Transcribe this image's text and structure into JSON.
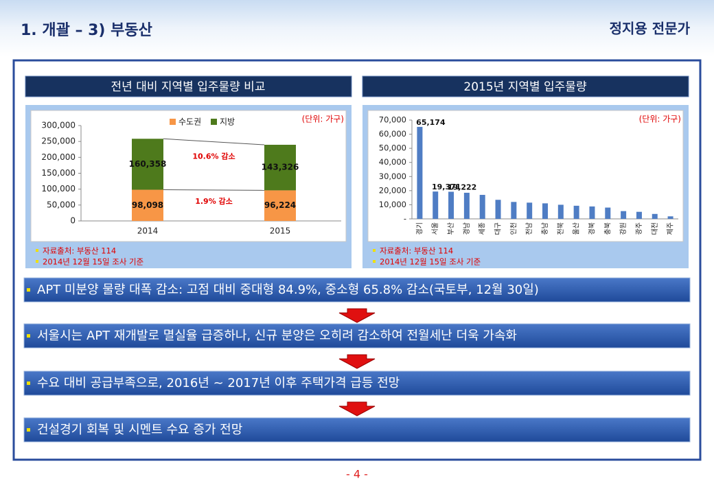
{
  "header": {
    "title": "1. 개괄 – 3) 부동산",
    "author": "정지용 전문가"
  },
  "charts": [
    {
      "type": "stacked_bar",
      "title": "전년 대비 지역별 입주물량 비교",
      "unit": "(단위: 가구)",
      "categories": [
        "2014",
        "2015"
      ],
      "series": [
        {
          "name": "수도권",
          "color": "#f79646",
          "values": [
            98098,
            96224
          ],
          "value_labels": [
            "98,098",
            "96,224"
          ]
        },
        {
          "name": "지방",
          "color": "#4e7a1c",
          "values": [
            160358,
            143326
          ],
          "value_labels": [
            "160,358",
            "143,326"
          ]
        }
      ],
      "ylim": [
        0,
        300000
      ],
      "yticks": [
        0,
        {
          "value": 50000,
          "label": "50,000"
        },
        {
          "value": 100000,
          "label": "100,000"
        },
        {
          "value": 150000,
          "label": "150,000"
        },
        {
          "value": 200000,
          "label": "200,000"
        },
        {
          "value": 250000,
          "label": "250,000"
        },
        {
          "value": 300000,
          "label": "300,000"
        }
      ],
      "annotations": [
        "10.6% 감소",
        "1.9% 감소"
      ],
      "notes": [
        "자료출처: 부동산 114",
        "2014년 12월 15일 조사 기준"
      ]
    },
    {
      "type": "bar",
      "title": "2015년 지역별 입주물량",
      "unit": "(단위: 가구)",
      "categories": [
        "경기",
        "서울",
        "부산",
        "경남",
        "세종",
        "대구",
        "인천",
        "전남",
        "충남",
        "전북",
        "울산",
        "경북",
        "충북",
        "강원",
        "광주",
        "대전",
        "제주"
      ],
      "values": [
        65174,
        19371,
        19222,
        18500,
        17000,
        13500,
        12000,
        11500,
        11000,
        10000,
        9300,
        8800,
        8000,
        5500,
        5000,
        3500,
        1800
      ],
      "value_labels": [
        "65,174",
        "19,371",
        "19,222",
        null,
        null,
        null,
        null,
        null,
        null,
        null,
        null,
        null,
        null,
        null,
        null,
        null,
        null
      ],
      "color": "#4f7dc4",
      "ylim": [
        0,
        70000
      ],
      "yticks": [
        {
          "value": 0,
          "label": "-"
        },
        {
          "value": 10000,
          "label": "10,000"
        },
        {
          "value": 20000,
          "label": "20,000"
        },
        {
          "value": 30000,
          "label": "30,000"
        },
        {
          "value": 40000,
          "label": "40,000"
        },
        {
          "value": 50000,
          "label": "50,000"
        },
        {
          "value": 60000,
          "label": "60,000"
        },
        {
          "value": 70000,
          "label": "70,000"
        }
      ],
      "notes": [
        "자료출처: 부동산 114",
        "2014년 12월 15일 조사 기준"
      ]
    }
  ],
  "bullets": [
    "APT 미분양 물량 대폭 감소: 고점 대비 중대형 84.9%, 중소형 65.8% 감소(국토부, 12월 30일)",
    "서울시는 APT 재개발로 멸실율 급증하나, 신규 분양은 오히려 감소하여 전월세난 더욱 가속화",
    "수요 대비 공급부족으로, 2016년 ~ 2017년 이후 주택가격 급등 전망",
    "건설경기 회복 및 시멘트 수요 증가 전망"
  ],
  "page_number": "- 4 -"
}
